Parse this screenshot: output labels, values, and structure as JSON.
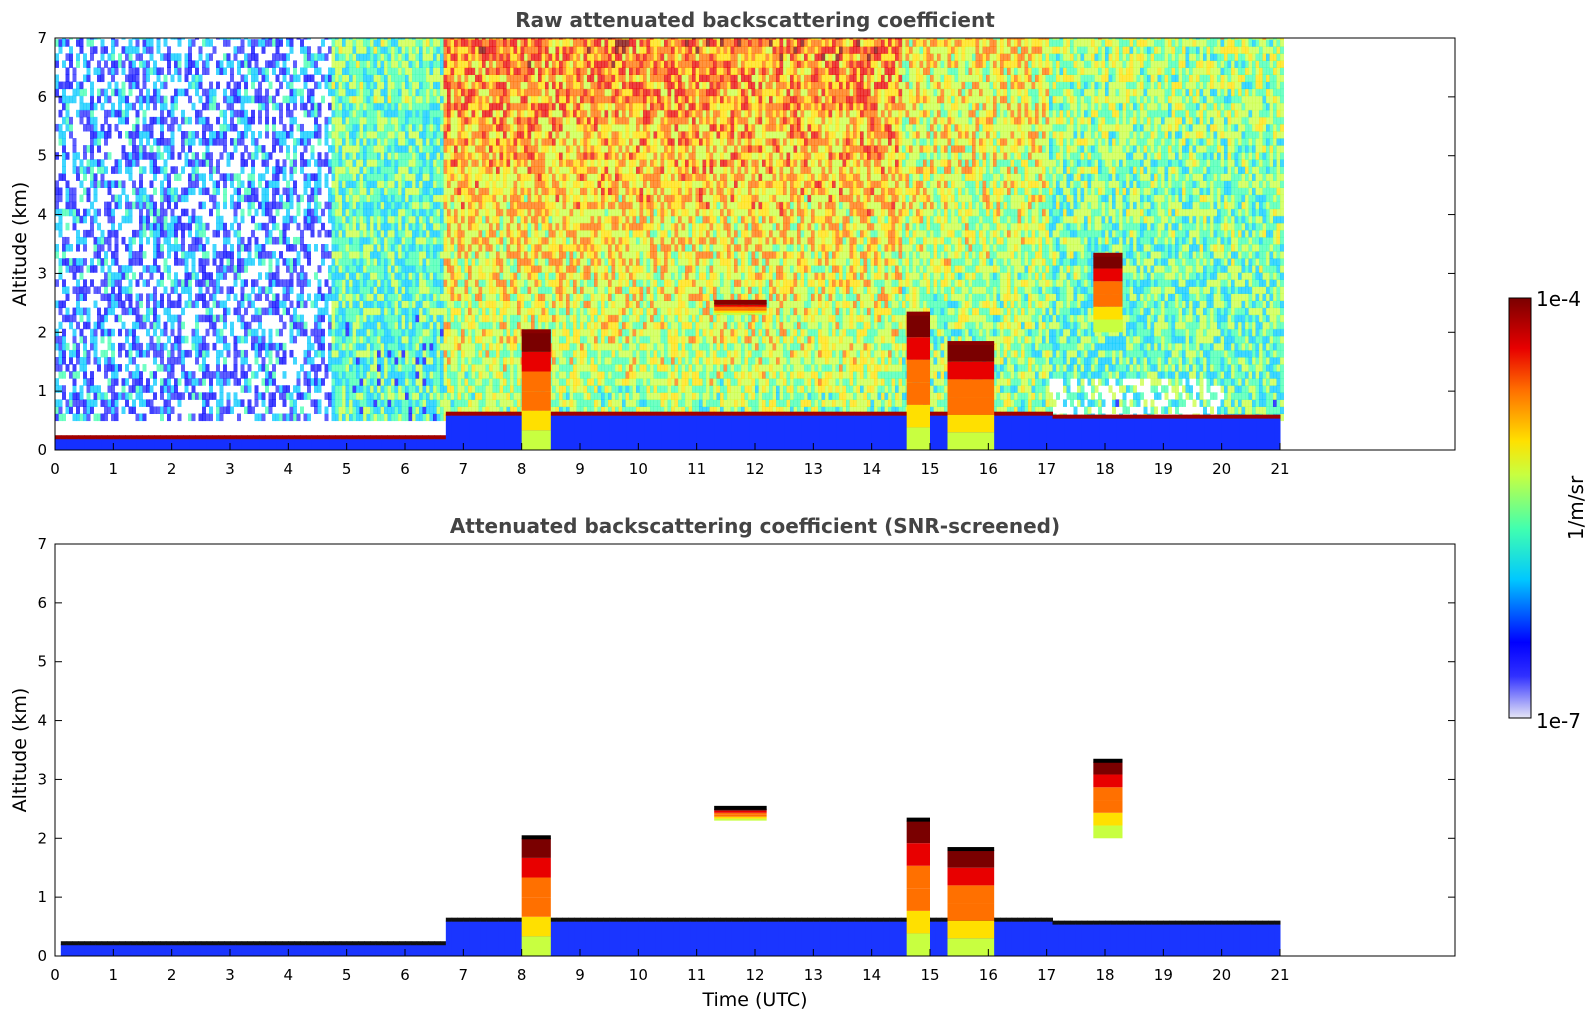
{
  "chart_data": [
    {
      "type": "heatmap",
      "title": "Raw attenuated backscattering coefficient",
      "xlabel": "",
      "ylabel": "Altitude (km)",
      "xlim": [
        0,
        24
      ],
      "ylim": [
        0,
        7
      ],
      "x_ticks": [
        "0",
        "1",
        "2",
        "3",
        "4",
        "5",
        "6",
        "7",
        "8",
        "9",
        "10",
        "11",
        "12",
        "13",
        "14",
        "15",
        "16",
        "17",
        "18",
        "19",
        "20",
        "21"
      ],
      "y_ticks": [
        "0",
        "1",
        "2",
        "3",
        "4",
        "5",
        "6",
        "7"
      ],
      "data_time_range": [
        0,
        21
      ],
      "grid": false,
      "features": [
        {
          "name": "surface aerosol layer",
          "time": [
            0,
            6.6
          ],
          "altitude_top": 0.2
        },
        {
          "name": "boundary layer",
          "time": [
            6.6,
            21
          ],
          "altitude_top": 0.6
        },
        {
          "name": "low cloud column",
          "time": [
            8.0,
            8.5
          ],
          "altitude": [
            0,
            2.0
          ]
        },
        {
          "name": "low cloud column",
          "time": [
            14.6,
            15.0
          ],
          "altitude": [
            0,
            2.3
          ]
        },
        {
          "name": "low cloud column",
          "time": [
            15.3,
            16.1
          ],
          "altitude": [
            0,
            1.8
          ]
        },
        {
          "name": "cloud layer",
          "time": [
            11.3,
            12.2
          ],
          "altitude": [
            2.3,
            2.5
          ]
        },
        {
          "name": "cloud",
          "time": [
            17.8,
            18.3
          ],
          "altitude": [
            2.0,
            3.3
          ]
        }
      ]
    },
    {
      "type": "heatmap",
      "title": "Attenuated backscattering coefficient (SNR-screened)",
      "xlabel": "Time (UTC)",
      "ylabel": "Altitude (km)",
      "xlim": [
        0,
        24
      ],
      "ylim": [
        0,
        7
      ],
      "x_ticks": [
        "0",
        "1",
        "2",
        "3",
        "4",
        "5",
        "6",
        "7",
        "8",
        "9",
        "10",
        "11",
        "12",
        "13",
        "14",
        "15",
        "16",
        "17",
        "18",
        "19",
        "20",
        "21"
      ],
      "y_ticks": [
        "0",
        "1",
        "2",
        "3",
        "4",
        "5",
        "6",
        "7"
      ],
      "data_time_range": [
        0,
        21
      ],
      "grid": false
    }
  ],
  "colorbar": {
    "label": "1/m/sr",
    "max_label": "1e-4",
    "min_label": "1e-7",
    "scale": "log",
    "range": [
      1e-07,
      0.0001
    ],
    "colormap": [
      "#e8e8f8",
      "#0000ff",
      "#00e0ff",
      "#60ff80",
      "#ffff00",
      "#ff8000",
      "#e00000",
      "#800000"
    ]
  }
}
